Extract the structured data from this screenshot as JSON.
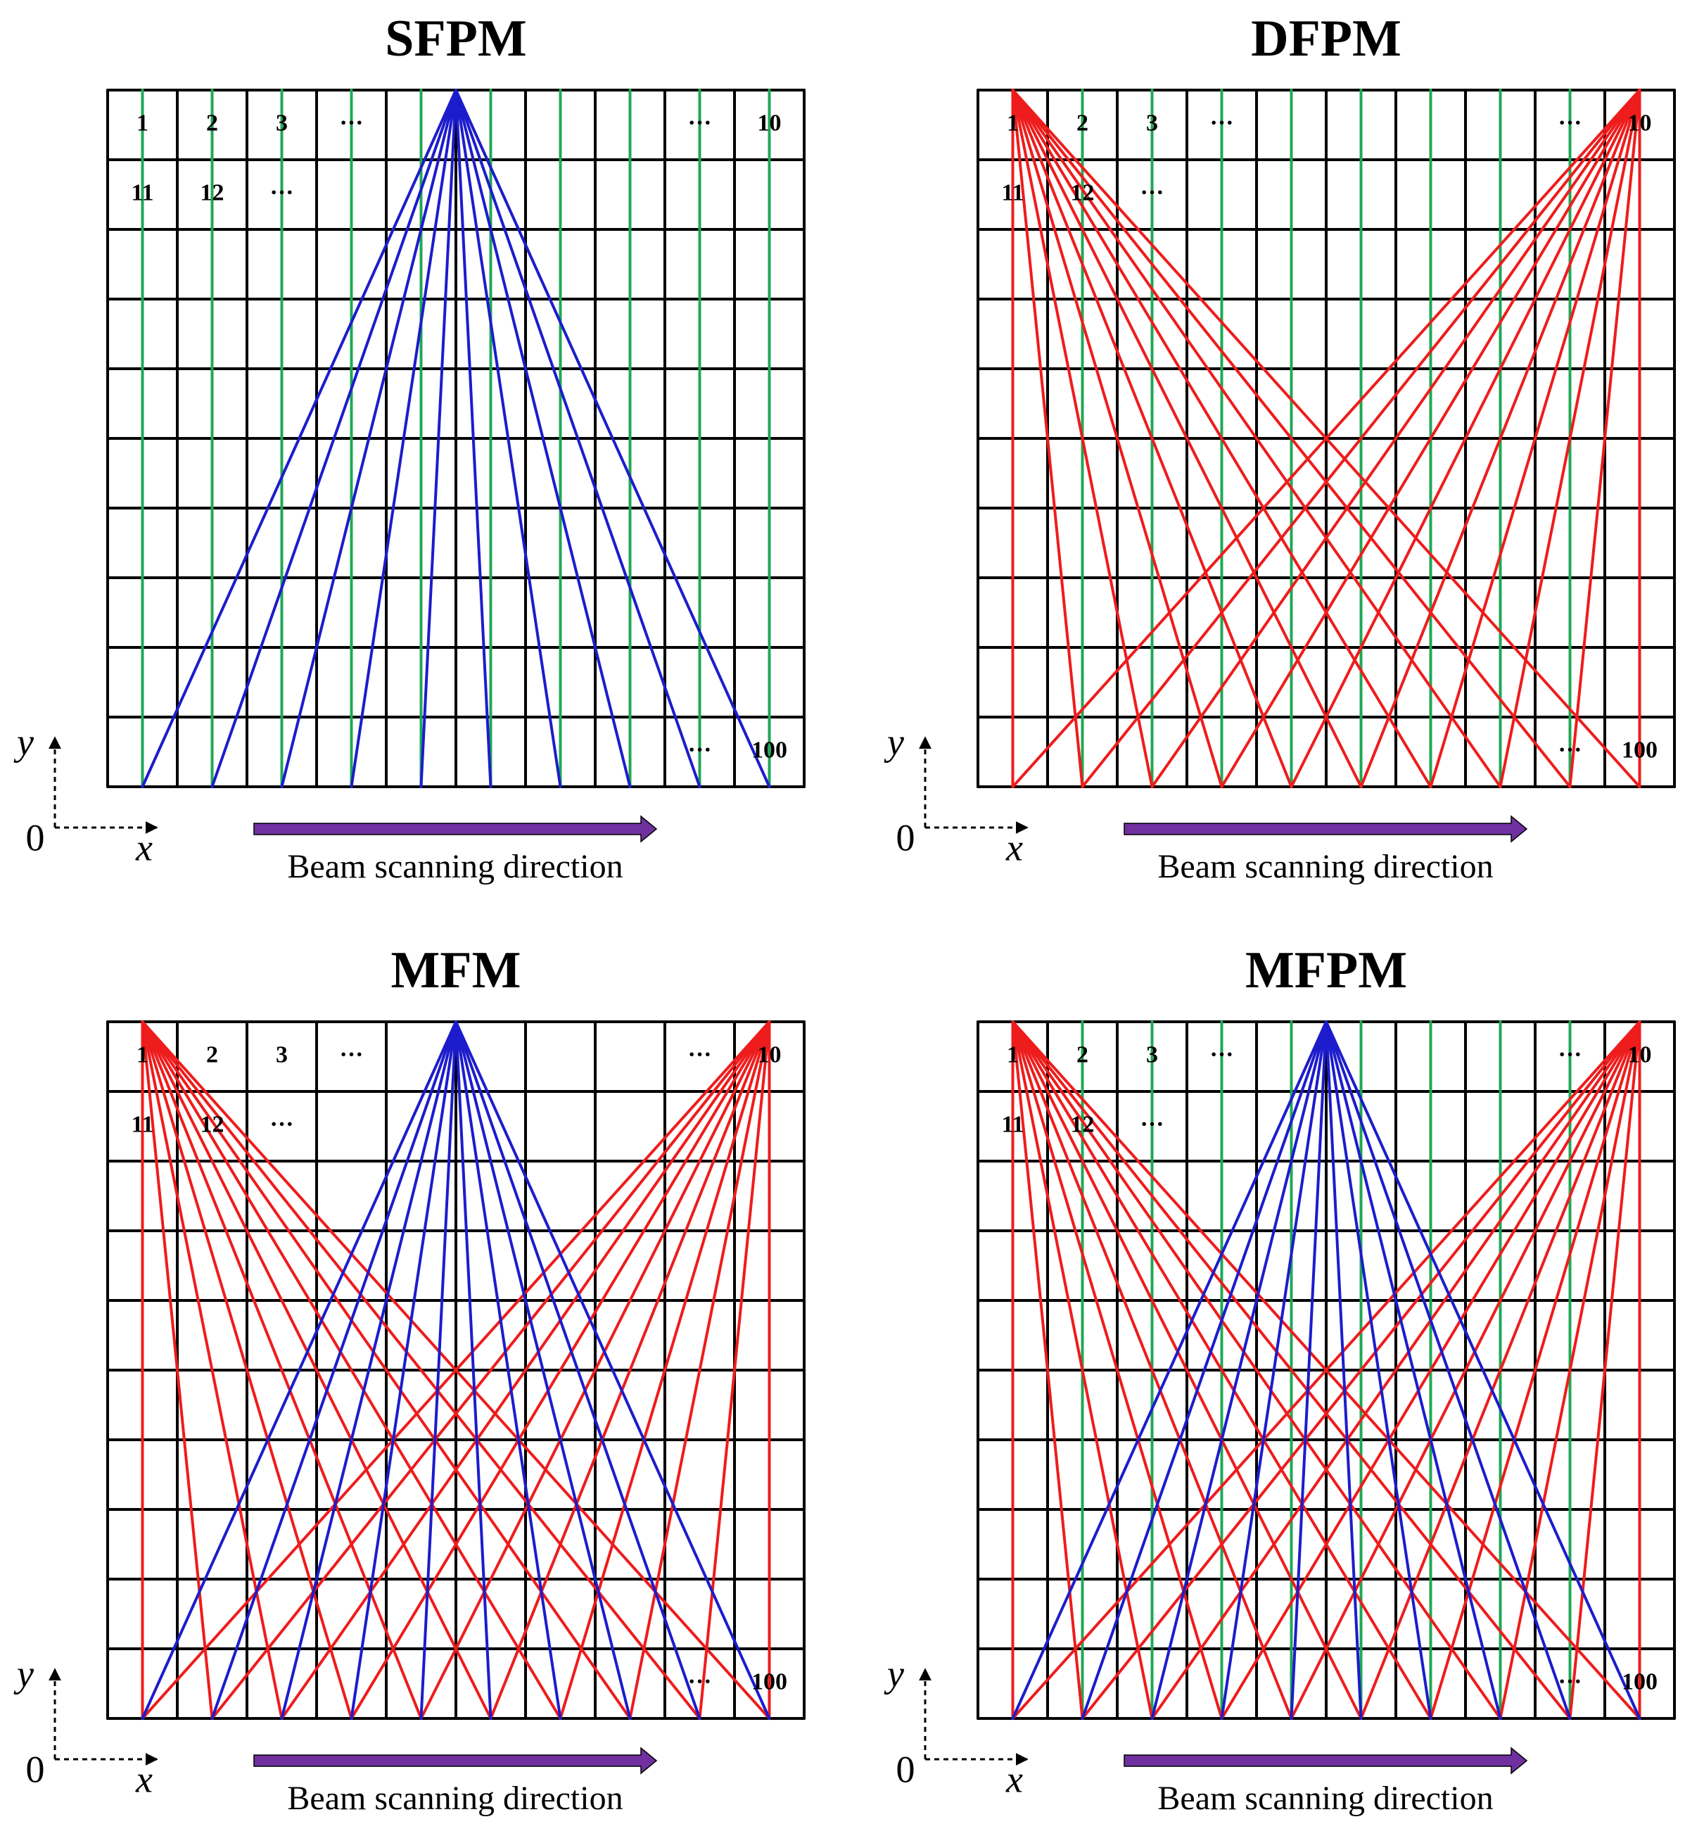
{
  "figure": {
    "colors": {
      "grid": "#000000",
      "green": "#1fa855",
      "blue": "#1c1ccc",
      "red": "#ee1c1c",
      "arrow": "#7030a0"
    },
    "grid": {
      "cols": 10,
      "rows": 10
    },
    "panels": [
      {
        "id": "sfpm",
        "title": "SFPM",
        "greenLines": true,
        "blueFan": true,
        "redFans": false,
        "labels": {
          "c1": "1",
          "c2": "2",
          "c3": "3",
          "dots_left": "···",
          "dots_right": "···",
          "c10": "10",
          "c11": "11",
          "c12": "12",
          "dots_row2": "···",
          "dots_bottom": "···",
          "c100": "100"
        },
        "axis": {
          "y": "y",
          "x": "x",
          "origin": "0"
        },
        "arrowCaption": "Beam scanning direction"
      },
      {
        "id": "dfpm",
        "title": "DFPM",
        "greenLines": true,
        "blueFan": false,
        "redFans": true,
        "labels": {
          "c1": "1",
          "c2": "2",
          "c3": "3",
          "dots_left": "···",
          "dots_right": "···",
          "c10": "10",
          "c11": "11",
          "c12": "12",
          "dots_row2": "···",
          "dots_bottom": "···",
          "c100": "100"
        },
        "axis": {
          "y": "y",
          "x": "x",
          "origin": "0"
        },
        "arrowCaption": "Beam scanning direction"
      },
      {
        "id": "mfm",
        "title": "MFM",
        "greenLines": false,
        "blueFan": true,
        "redFans": true,
        "labels": {
          "c1": "1",
          "c2": "2",
          "c3": "3",
          "dots_left": "···",
          "dots_right": "···",
          "c10": "10",
          "c11": "11",
          "c12": "12",
          "dots_row2": "···",
          "dots_bottom": "···",
          "c100": "100"
        },
        "axis": {
          "y": "y",
          "x": "x",
          "origin": "0"
        },
        "arrowCaption": "Beam scanning direction"
      },
      {
        "id": "mfpm",
        "title": "MFPM",
        "greenLines": true,
        "blueFan": true,
        "redFans": true,
        "labels": {
          "c1": "1",
          "c2": "2",
          "c3": "3",
          "dots_left": "···",
          "dots_right": "···",
          "c10": "10",
          "c11": "11",
          "c12": "12",
          "dots_row2": "···",
          "dots_bottom": "···",
          "c100": "100"
        },
        "axis": {
          "y": "y",
          "x": "x",
          "origin": "0"
        },
        "arrowCaption": "Beam scanning direction"
      }
    ]
  }
}
